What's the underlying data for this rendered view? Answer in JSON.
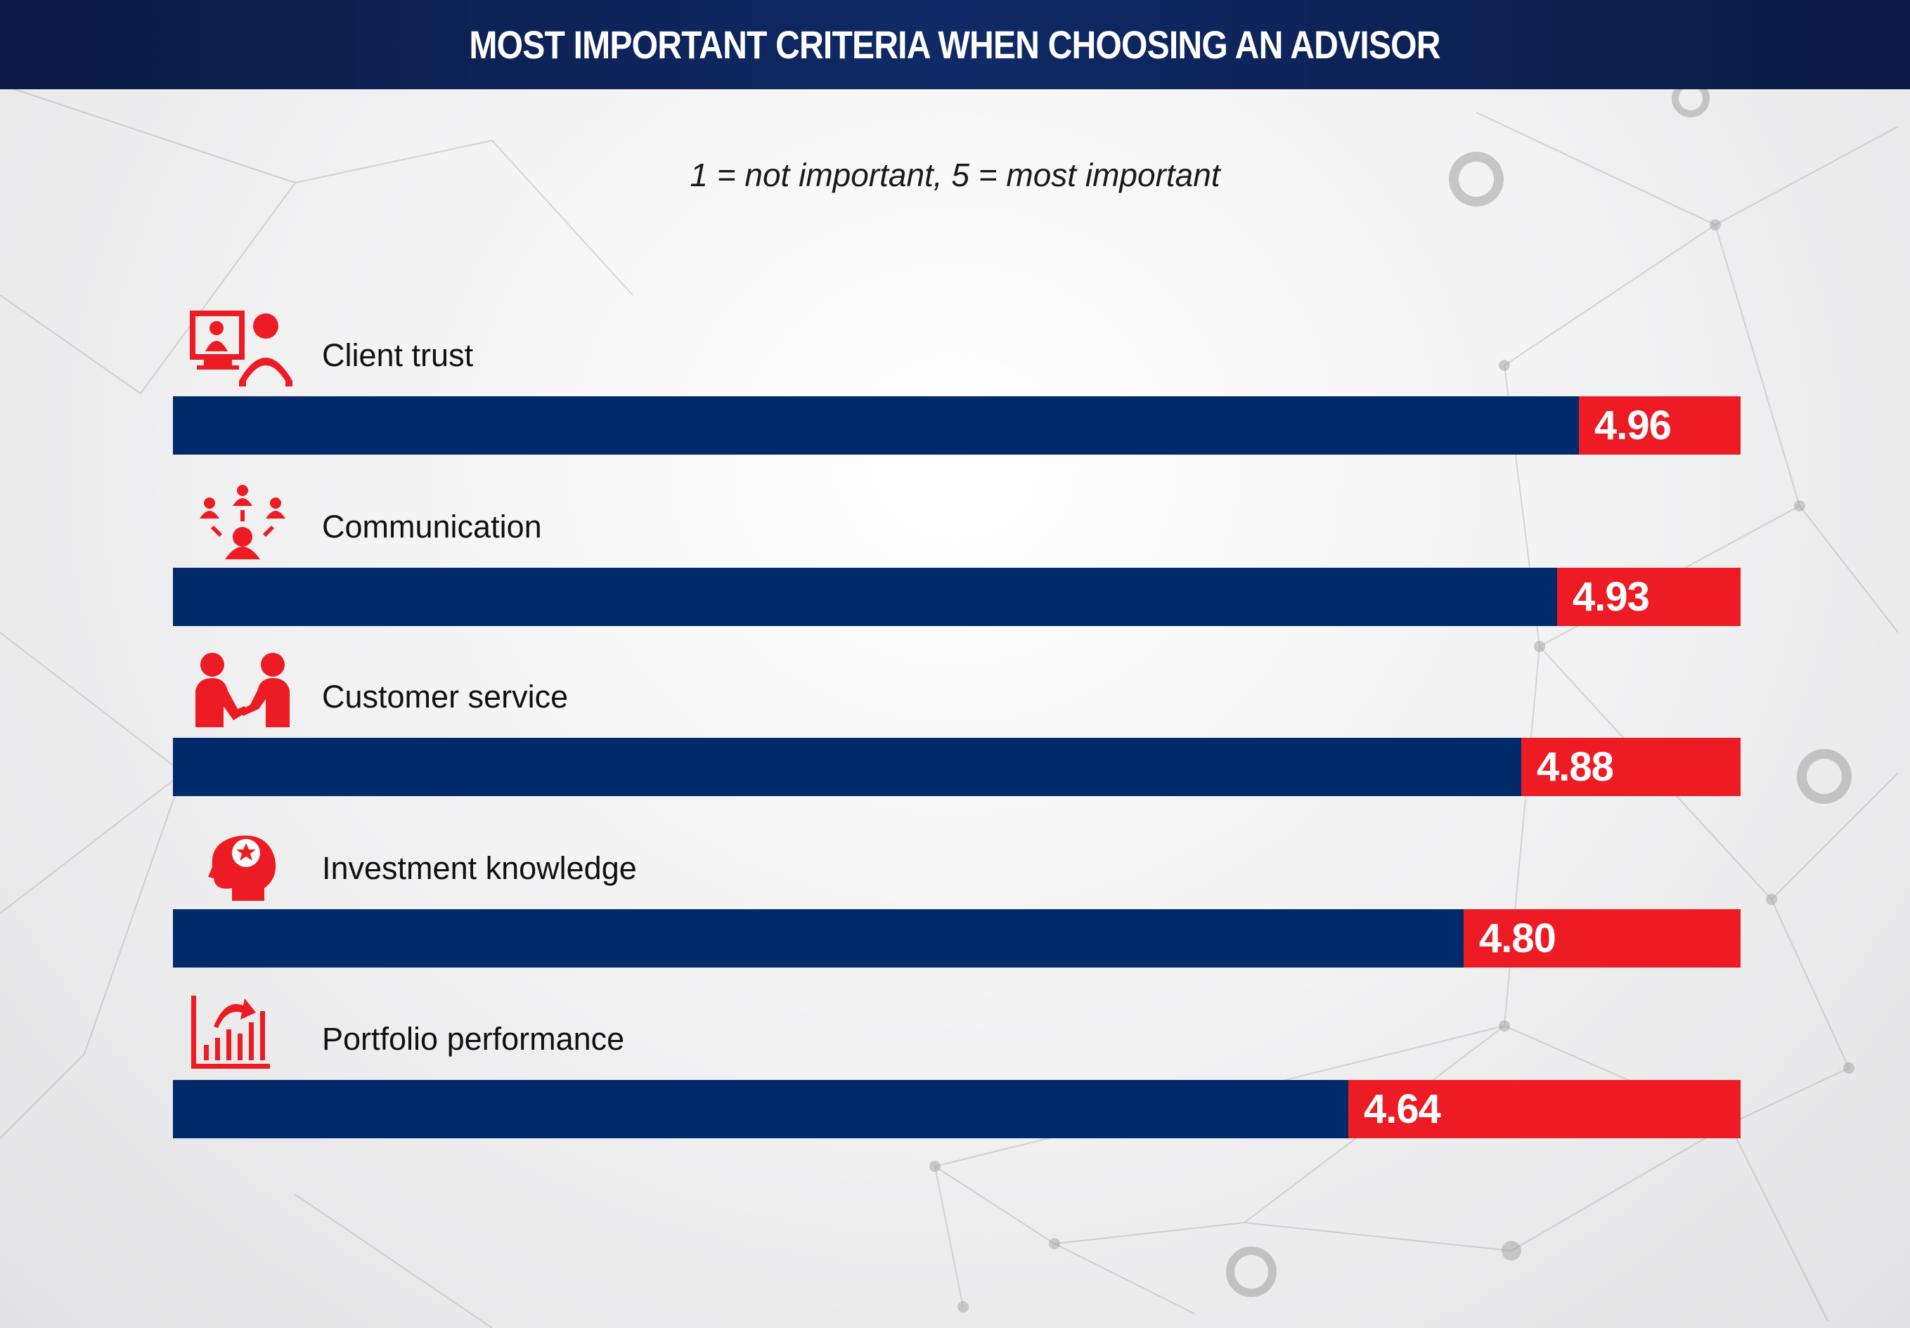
{
  "header": {
    "title": "MOST IMPORTANT CRITERIA WHEN CHOOSING AN ADVISOR"
  },
  "subtitle": "1 = not important, 5 = most important",
  "colors": {
    "bar": "#002a6a",
    "remainder": "#ed1c24",
    "icon": "#ed1c24",
    "header": "#0f2a66"
  },
  "chart_data": {
    "type": "bar",
    "orientation": "horizontal",
    "title": "MOST IMPORTANT CRITERIA WHEN CHOOSING AN ADVISOR",
    "subtitle": "1 = not important, 5 = most important",
    "scale": [
      1,
      5
    ],
    "categories": [
      "Client trust",
      "Communication",
      "Customer service",
      "Investment knowledge",
      "Portfolio performance"
    ],
    "values": [
      4.96,
      4.93,
      4.88,
      4.8,
      4.64
    ],
    "value_labels": [
      "4.96",
      "4.93",
      "4.88",
      "4.80",
      "4.64"
    ],
    "icons": [
      "video-meeting-icon",
      "team-network-icon",
      "handshake-icon",
      "head-star-icon",
      "growth-chart-icon"
    ],
    "legend": "none",
    "grid": false
  }
}
